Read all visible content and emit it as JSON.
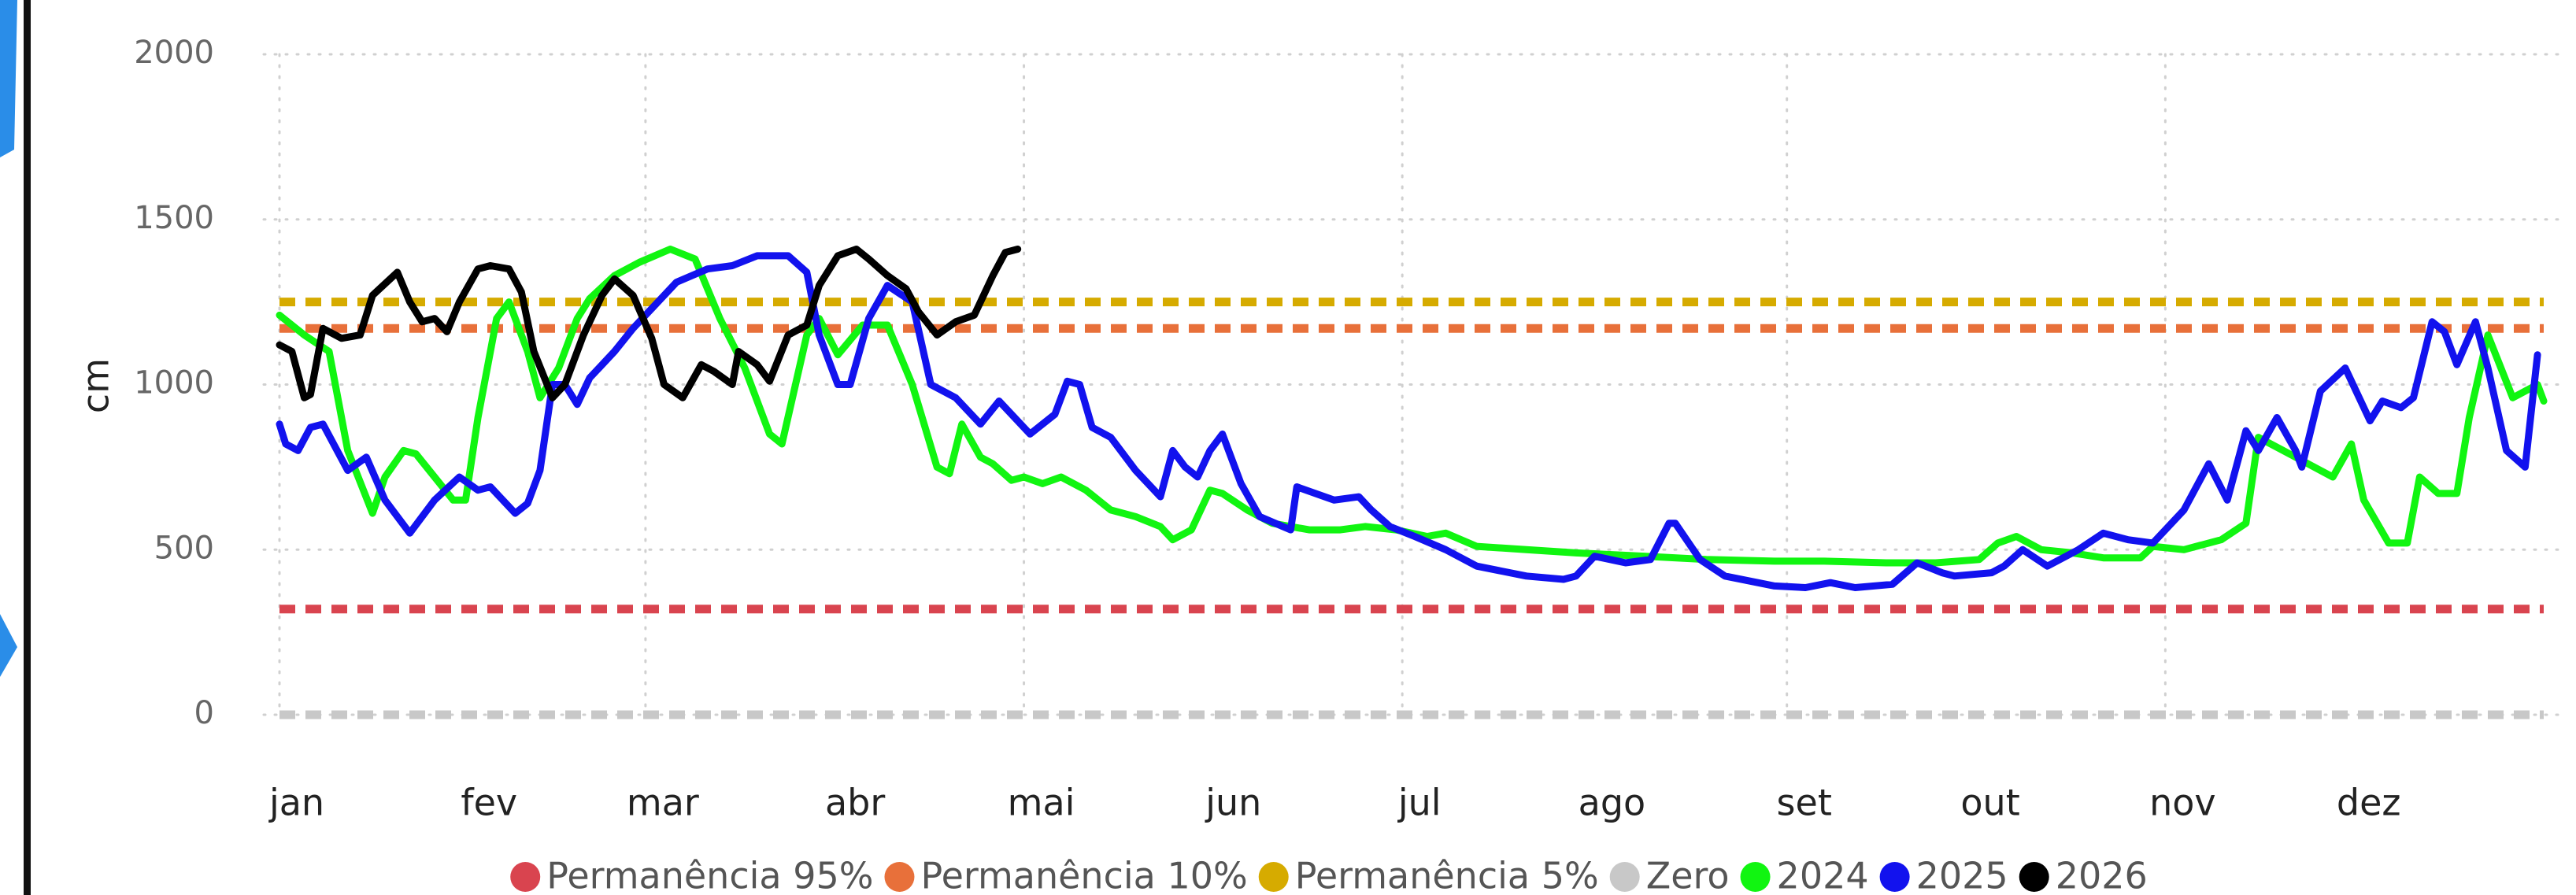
{
  "chart_data": {
    "type": "line",
    "y_label": "cm",
    "xlim": [
      0,
      365
    ],
    "ylim": [
      0,
      2000
    ],
    "yticks": [
      0,
      500,
      1000,
      1500,
      2000
    ],
    "xticks": [
      {
        "value": 0,
        "label": "jan"
      },
      {
        "value": 31,
        "label": "fev"
      },
      {
        "value": 59,
        "label": "mar"
      },
      {
        "value": 90,
        "label": "abr"
      },
      {
        "value": 120,
        "label": "mai"
      },
      {
        "value": 151,
        "label": "jun"
      },
      {
        "value": 181,
        "label": "jul"
      },
      {
        "value": 212,
        "label": "ago"
      },
      {
        "value": 243,
        "label": "set"
      },
      {
        "value": 273,
        "label": "out"
      },
      {
        "value": 304,
        "label": "nov"
      },
      {
        "value": 334,
        "label": "dez"
      }
    ],
    "grid": true,
    "legend": "bottom",
    "series": [
      {
        "name": "Permanência 95%",
        "color": "#d9444f",
        "dashed": true,
        "x": [
          0,
          365
        ],
        "values": [
          320,
          320
        ]
      },
      {
        "name": "Permanência 10%",
        "color": "#e8703a",
        "dashed": true,
        "x": [
          0,
          365
        ],
        "values": [
          1170,
          1170
        ]
      },
      {
        "name": "Permanência 5%",
        "color": "#d6ab00",
        "dashed": true,
        "x": [
          0,
          365
        ],
        "values": [
          1250,
          1250
        ]
      },
      {
        "name": "Zero",
        "color": "#c8c8c8",
        "dashed": true,
        "x": [
          0,
          365
        ],
        "values": [
          0,
          0
        ]
      },
      {
        "name": "2024",
        "color": "#11f511",
        "dashed": false,
        "x": [
          0,
          4,
          8,
          11,
          15,
          17,
          20,
          22,
          25,
          28,
          30,
          32,
          35,
          37,
          40,
          42,
          45,
          48,
          50,
          54,
          58,
          63,
          67,
          71,
          75,
          79,
          81,
          85,
          87,
          90,
          94,
          98,
          102,
          106,
          108,
          110,
          113,
          115,
          118,
          120,
          123,
          126,
          130,
          134,
          138,
          142,
          144,
          147,
          150,
          152,
          156,
          160,
          166,
          171,
          175,
          180,
          185,
          188,
          193,
          201,
          209,
          220,
          230,
          241,
          249,
          259,
          267,
          274,
          277,
          280,
          284,
          289,
          294,
          300,
          302,
          307,
          313,
          317,
          319,
          323,
          327,
          331,
          334,
          336,
          340,
          343,
          345,
          348,
          351,
          353,
          356,
          360,
          364,
          365
        ],
        "values": [
          1210,
          1150,
          1100,
          800,
          610,
          720,
          800,
          790,
          720,
          650,
          650,
          900,
          1200,
          1250,
          1100,
          960,
          1050,
          1200,
          1260,
          1330,
          1370,
          1410,
          1380,
          1200,
          1050,
          850,
          820,
          1150,
          1200,
          1090,
          1180,
          1180,
          1000,
          750,
          730,
          880,
          780,
          760,
          710,
          720,
          700,
          720,
          680,
          620,
          600,
          570,
          530,
          560,
          680,
          670,
          620,
          580,
          560,
          560,
          570,
          560,
          540,
          550,
          510,
          500,
          490,
          480,
          470,
          465,
          465,
          460,
          460,
          470,
          520,
          540,
          500,
          490,
          475,
          475,
          510,
          500,
          530,
          580,
          840,
          800,
          760,
          720,
          820,
          650,
          520,
          520,
          720,
          670,
          670,
          900,
          1150,
          960,
          1000,
          950
        ]
      },
      {
        "name": "2025",
        "color": "#1212ee",
        "dashed": false,
        "x": [
          0,
          1,
          3,
          5,
          7,
          11,
          14,
          17,
          21,
          25,
          29,
          32,
          34,
          38,
          40,
          42,
          44,
          46,
          48,
          50,
          54,
          57,
          60,
          64,
          69,
          73,
          77,
          82,
          85,
          87,
          90,
          92,
          95,
          98,
          102,
          105,
          109,
          113,
          116,
          121,
          125,
          127,
          129,
          131,
          134,
          138,
          142,
          144,
          146,
          148,
          150,
          152,
          155,
          158,
          163,
          164,
          170,
          174,
          176,
          179,
          183,
          188,
          193,
          201,
          207,
          209,
          212,
          217,
          221,
          224,
          225,
          229,
          233,
          241,
          246,
          250,
          254,
          260,
          264,
          268,
          270,
          276,
          278,
          281,
          285,
          290,
          294,
          298,
          302,
          307,
          311,
          314,
          317,
          319,
          322,
          325,
          326,
          329,
          333,
          337,
          339,
          342,
          344,
          347,
          349,
          351,
          354,
          356,
          359,
          362,
          364
        ],
        "values": [
          880,
          820,
          800,
          870,
          880,
          740,
          780,
          650,
          550,
          650,
          720,
          680,
          690,
          610,
          640,
          740,
          1000,
          1000,
          940,
          1020,
          1100,
          1170,
          1230,
          1310,
          1350,
          1360,
          1390,
          1390,
          1340,
          1150,
          1000,
          1000,
          1200,
          1300,
          1250,
          1000,
          960,
          880,
          950,
          850,
          910,
          1010,
          1000,
          870,
          840,
          740,
          660,
          800,
          750,
          720,
          800,
          850,
          700,
          600,
          560,
          690,
          650,
          660,
          620,
          570,
          540,
          500,
          450,
          420,
          410,
          420,
          480,
          460,
          470,
          580,
          580,
          470,
          420,
          390,
          385,
          400,
          385,
          395,
          460,
          430,
          420,
          430,
          450,
          500,
          450,
          500,
          550,
          530,
          520,
          620,
          760,
          650,
          860,
          800,
          900,
          800,
          750,
          980,
          1050,
          890,
          950,
          930,
          960,
          1190,
          1160,
          1060,
          1190,
          1050,
          800,
          750,
          1090
        ]
      },
      {
        "name": "2026",
        "color": "#000000",
        "dashed": false,
        "x": [
          0,
          2,
          4,
          5,
          7,
          10,
          13,
          15,
          19,
          21,
          23,
          25,
          27,
          29,
          32,
          34,
          37,
          39,
          41,
          44,
          46,
          49,
          52,
          54,
          57,
          60,
          62,
          65,
          68,
          70,
          73,
          74,
          77,
          79,
          82,
          85,
          87,
          90,
          93,
          95,
          98,
          101,
          103,
          106,
          109,
          112,
          115,
          117,
          119
        ],
        "values": [
          1120,
          1100,
          960,
          970,
          1170,
          1140,
          1150,
          1270,
          1340,
          1250,
          1190,
          1200,
          1160,
          1250,
          1350,
          1360,
          1350,
          1280,
          1100,
          960,
          1000,
          1150,
          1270,
          1320,
          1270,
          1140,
          1000,
          960,
          1060,
          1040,
          1000,
          1100,
          1060,
          1010,
          1150,
          1180,
          1300,
          1390,
          1410,
          1380,
          1330,
          1290,
          1220,
          1150,
          1190,
          1210,
          1330,
          1400,
          1410
        ]
      }
    ]
  }
}
